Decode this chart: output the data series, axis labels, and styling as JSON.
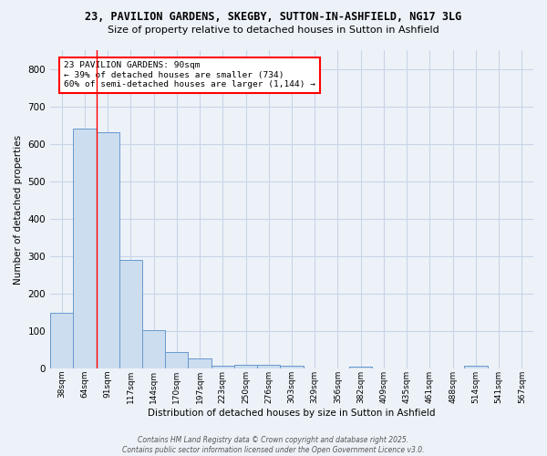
{
  "title_line1": "23, PAVILION GARDENS, SKEGBY, SUTTON-IN-ASHFIELD, NG17 3LG",
  "title_line2": "Size of property relative to detached houses in Sutton in Ashfield",
  "xlabel": "Distribution of detached houses by size in Sutton in Ashfield",
  "ylabel": "Number of detached properties",
  "categories": [
    "38sqm",
    "64sqm",
    "91sqm",
    "117sqm",
    "144sqm",
    "170sqm",
    "197sqm",
    "223sqm",
    "250sqm",
    "276sqm",
    "303sqm",
    "329sqm",
    "356sqm",
    "382sqm",
    "409sqm",
    "435sqm",
    "461sqm",
    "488sqm",
    "514sqm",
    "541sqm",
    "567sqm"
  ],
  "values": [
    150,
    640,
    630,
    290,
    102,
    44,
    28,
    8,
    10,
    10,
    8,
    0,
    0,
    5,
    0,
    0,
    0,
    0,
    8,
    0,
    0
  ],
  "bar_color": "#ccddf0",
  "bar_edge_color": "#6699cc",
  "grid_color": "#c8d4e8",
  "background_color": "#edf2f8",
  "annotation_text": "23 PAVILION GARDENS: 90sqm\n← 39% of detached houses are smaller (734)\n60% of semi-detached houses are larger (1,144) →",
  "annotation_box_color": "white",
  "annotation_box_edge_color": "red",
  "vline_color": "red",
  "vline_x": 1.5,
  "ylim": [
    0,
    850
  ],
  "yticks": [
    0,
    100,
    200,
    300,
    400,
    500,
    600,
    700,
    800
  ],
  "footer_line1": "Contains HM Land Registry data © Crown copyright and database right 2025.",
  "footer_line2": "Contains public sector information licensed under the Open Government Licence v3.0."
}
